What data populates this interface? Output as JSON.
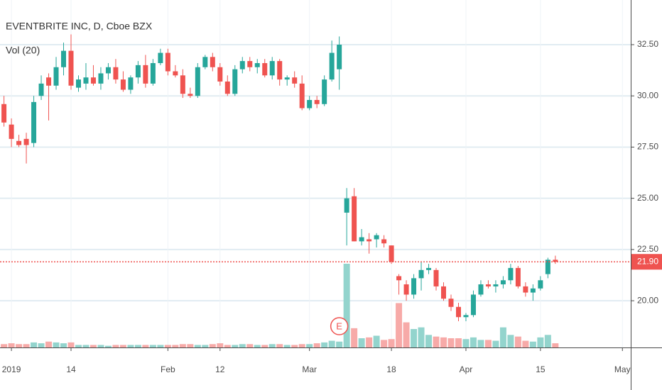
{
  "chart_data": {
    "type": "candlestick",
    "title": "EVENTBRITE INC, D, Cboe BZX",
    "subtitle": "Vol (20)",
    "categories": [
      null,
      "2019",
      null,
      null,
      null,
      null,
      null,
      null,
      null,
      "14",
      null,
      null,
      null,
      null,
      null,
      null,
      null,
      null,
      null,
      null,
      null,
      null,
      "Feb",
      null,
      null,
      null,
      null,
      null,
      null,
      "12",
      null,
      null,
      null,
      null,
      null,
      null,
      null,
      null,
      null,
      null,
      null,
      "Mar",
      null,
      null,
      null,
      null,
      null,
      null,
      null,
      null,
      null,
      null,
      "18",
      null,
      null,
      null,
      null,
      null,
      null,
      null,
      null,
      null,
      "Apr",
      null,
      null,
      null,
      null,
      null,
      null,
      null,
      null,
      null,
      "15",
      null,
      null,
      null,
      null,
      null,
      null,
      null,
      null,
      null,
      null,
      "May"
    ],
    "open": [
      29.6,
      28.6,
      27.8,
      27.9,
      27.7,
      30.0,
      30.9,
      30.5,
      31.4,
      32.2,
      30.4,
      30.6,
      30.9,
      30.6,
      31.1,
      31.4,
      30.8,
      30.3,
      30.9,
      31.5,
      30.6,
      31.6,
      32.1,
      31.2,
      31.0,
      30.1,
      30.0,
      31.4,
      31.9,
      31.4,
      30.7,
      30.1,
      31.3,
      31.7,
      31.4,
      31.6,
      31.0,
      31.7,
      30.8,
      30.9,
      30.6,
      29.4,
      29.8,
      29.6,
      30.8,
      31.3,
      24.3,
      25.1,
      22.9,
      23.0,
      23.0,
      23.0,
      22.7,
      21.2,
      20.8,
      20.3,
      21.1,
      21.5,
      21.5,
      20.7,
      20.1,
      19.7,
      19.2,
      19.3,
      20.3,
      20.8,
      20.7,
      20.8,
      21.0,
      21.6,
      20.7,
      20.4,
      20.6,
      21.3,
      22.0,
      null,
      null,
      null,
      null,
      null,
      null,
      null,
      null,
      null
    ],
    "high": [
      30.0,
      28.9,
      28.1,
      28.2,
      30.0,
      31.0,
      31.1,
      31.9,
      32.6,
      33.0,
      31.0,
      31.6,
      31.5,
      31.4,
      31.6,
      31.8,
      31.2,
      31.0,
      31.7,
      32.0,
      31.8,
      32.3,
      32.3,
      31.5,
      31.3,
      30.4,
      31.6,
      32.0,
      32.1,
      31.6,
      31.0,
      31.5,
      31.9,
      31.9,
      31.8,
      31.8,
      31.9,
      31.8,
      31.0,
      31.2,
      31.0,
      30.0,
      30.0,
      31.0,
      32.7,
      32.9,
      25.5,
      25.5,
      23.5,
      23.3,
      23.3,
      23.2,
      22.7,
      21.3,
      21.0,
      21.3,
      21.9,
      21.8,
      21.6,
      20.9,
      20.3,
      19.9,
      19.4,
      20.5,
      21.0,
      21.0,
      21.0,
      21.2,
      21.8,
      21.7,
      20.9,
      20.8,
      21.2,
      22.1,
      22.2,
      null,
      null,
      null,
      null,
      null,
      null,
      null,
      null,
      null
    ],
    "low": [
      28.5,
      27.5,
      27.5,
      26.7,
      27.5,
      29.8,
      28.8,
      30.3,
      31.0,
      30.3,
      30.2,
      30.3,
      30.5,
      30.3,
      30.8,
      30.6,
      30.2,
      30.1,
      30.6,
      30.4,
      30.5,
      31.5,
      31.0,
      30.9,
      29.9,
      29.9,
      29.9,
      31.3,
      31.2,
      30.5,
      30.0,
      30.0,
      31.1,
      31.2,
      31.1,
      30.9,
      30.8,
      30.5,
      30.5,
      30.4,
      29.3,
      29.3,
      29.4,
      29.5,
      30.7,
      30.3,
      22.7,
      22.9,
      22.7,
      22.3,
      22.6,
      22.6,
      21.8,
      20.3,
      20.0,
      20.1,
      20.5,
      21.3,
      20.5,
      20.0,
      19.5,
      19.0,
      19.0,
      19.2,
      20.2,
      20.6,
      20.4,
      20.6,
      20.8,
      20.6,
      20.2,
      20.0,
      20.5,
      21.1,
      21.8,
      null,
      null,
      null,
      null,
      null,
      null,
      null,
      null,
      null
    ],
    "close": [
      28.7,
      27.9,
      27.6,
      27.6,
      29.7,
      30.6,
      30.5,
      31.4,
      32.2,
      30.5,
      30.8,
      30.9,
      30.6,
      31.1,
      31.4,
      30.8,
      30.3,
      30.9,
      31.5,
      30.6,
      31.6,
      32.1,
      31.2,
      31.0,
      30.1,
      30.0,
      31.4,
      31.9,
      31.4,
      30.7,
      30.1,
      31.3,
      31.7,
      31.4,
      31.6,
      31.0,
      31.7,
      30.8,
      30.9,
      30.6,
      29.4,
      29.8,
      29.6,
      30.8,
      32.1,
      32.5,
      25.0,
      22.9,
      23.1,
      22.9,
      23.2,
      22.8,
      21.9,
      21.0,
      20.3,
      21.1,
      21.5,
      21.6,
      20.7,
      20.1,
      19.7,
      19.2,
      19.3,
      20.3,
      20.8,
      20.7,
      20.8,
      21.0,
      21.6,
      20.7,
      20.4,
      20.6,
      21.0,
      22.0,
      21.9,
      null,
      null,
      null,
      null,
      null,
      null,
      null,
      null,
      null
    ],
    "volume": [
      0.4,
      0.5,
      0.4,
      0.4,
      0.6,
      0.5,
      0.7,
      0.6,
      0.5,
      0.6,
      0.3,
      0.3,
      0.3,
      0.3,
      0.2,
      0.3,
      0.3,
      0.3,
      0.3,
      0.3,
      0.3,
      0.3,
      0.3,
      0.3,
      0.4,
      0.4,
      0.3,
      0.3,
      0.4,
      0.5,
      0.3,
      0.3,
      0.4,
      0.4,
      0.3,
      0.3,
      0.4,
      0.4,
      0.3,
      0.3,
      0.4,
      0.4,
      0.5,
      0.6,
      0.8,
      0.7,
      10.0,
      2.3,
      1.1,
      1.2,
      1.4,
      0.9,
      1.0,
      5.3,
      3.0,
      2.2,
      2.4,
      1.5,
      1.3,
      1.2,
      1.1,
      1.1,
      1.0,
      1.2,
      0.9,
      0.9,
      0.8,
      2.4,
      1.5,
      1.3,
      0.8,
      0.7,
      1.2,
      1.5,
      0.5,
      null,
      null,
      null,
      null,
      null,
      null,
      null,
      null,
      null
    ],
    "up_color": "#26a69a",
    "down_color": "#ef5350",
    "volume_up_color": "#93d4cd",
    "volume_down_color": "#f7aaa8",
    "ylim": [
      17.72,
      34.68
    ],
    "yticks": [
      {
        "value": 20,
        "label": "20.00"
      },
      {
        "value": 22.5,
        "label": "22.50"
      },
      {
        "value": 25,
        "label": "25.00"
      },
      {
        "value": 27.5,
        "label": "27.50"
      },
      {
        "value": 30,
        "label": "30.00"
      },
      {
        "value": 32.5,
        "label": "32.50"
      }
    ],
    "volume_ylim": [
      0,
      41.5
    ],
    "grid": true,
    "last_price": {
      "value": 21.9,
      "label": "21.90"
    },
    "event_marker": "E"
  }
}
